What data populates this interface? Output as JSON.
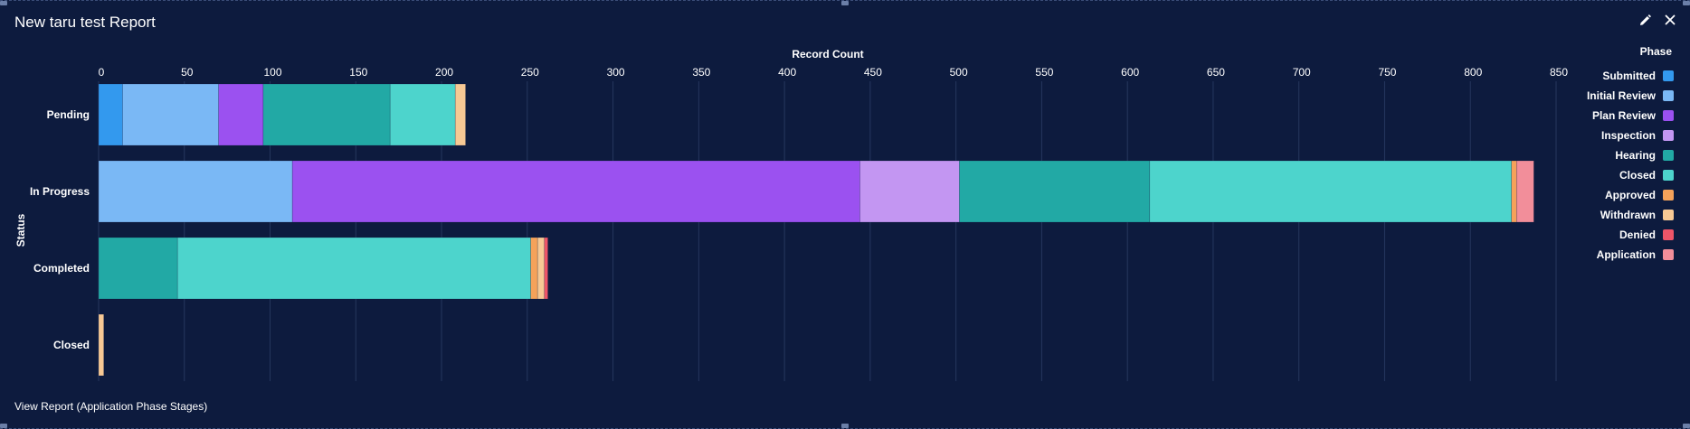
{
  "report": {
    "title": "New taru test Report",
    "footer_link": "View Report (Application Phase Stages)"
  },
  "icons": {
    "edit": "pencil-icon",
    "close": "close-icon"
  },
  "chart_data": {
    "type": "bar",
    "orientation": "horizontal",
    "stacked": true,
    "xlabel": "Record Count",
    "ylabel": "Status",
    "xlim": [
      0,
      850
    ],
    "xticks": [
      0,
      50,
      100,
      150,
      200,
      250,
      300,
      350,
      400,
      450,
      500,
      550,
      600,
      650,
      700,
      750,
      800,
      850
    ],
    "grid": true,
    "legend_title": "Phase",
    "legend_position": "right",
    "categories": [
      "Pending",
      "In Progress",
      "Completed",
      "Closed"
    ],
    "series": [
      {
        "name": "Submitted",
        "color": "#3399ee",
        "values": [
          14,
          0,
          0,
          0
        ]
      },
      {
        "name": "Initial Review",
        "color": "#7ab8f5",
        "values": [
          56,
          113,
          0,
          0
        ]
      },
      {
        "name": "Plan Review",
        "color": "#9b51f0",
        "values": [
          26,
          331,
          0,
          0
        ]
      },
      {
        "name": "Inspection",
        "color": "#c396f2",
        "values": [
          0,
          58,
          0,
          0
        ]
      },
      {
        "name": "Hearing",
        "color": "#22a9a5",
        "values": [
          74,
          111,
          46,
          0
        ]
      },
      {
        "name": "Closed",
        "color": "#4dd4cc",
        "values": [
          38,
          211,
          206,
          0
        ]
      },
      {
        "name": "Approved",
        "color": "#f5a25a",
        "values": [
          0,
          3,
          4,
          0
        ]
      },
      {
        "name": "Withdrawn",
        "color": "#f7c994",
        "values": [
          6,
          0,
          4,
          3
        ]
      },
      {
        "name": "Denied",
        "color": "#ee5568",
        "values": [
          0,
          0,
          2,
          0
        ]
      },
      {
        "name": "Application",
        "color": "#f28e9a",
        "values": [
          0,
          10,
          0,
          0
        ]
      }
    ]
  },
  "colors": {
    "background": "#0d1b3e",
    "gridline": "#26375e",
    "text": "#ffffff"
  }
}
